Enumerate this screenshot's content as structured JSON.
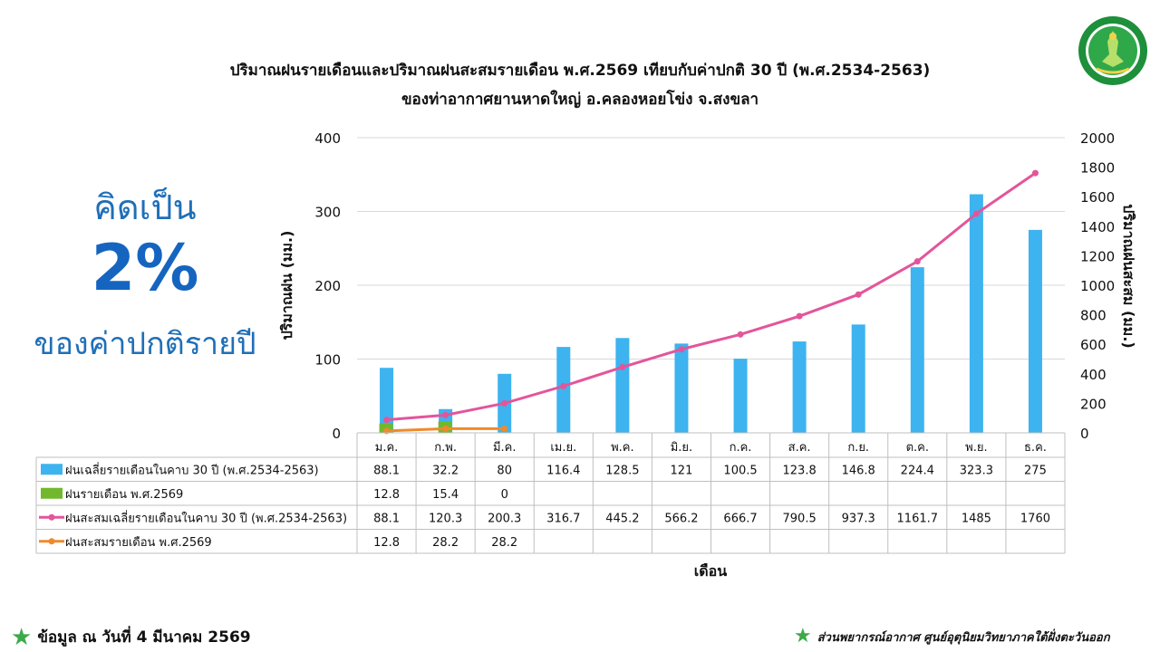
{
  "header": {
    "title_line1": "ปริมาณฝนรายเดือนและปริมาณฝนสะสมรายเดือน  พ.ศ.2569  เทียบกับค่าปกติ  30  ปี  (พ.ศ.2534-2563)",
    "title_line2": "ของท่าอากาศยานหาดใหญ่  อ.คลองหอยโข่ง  จ.สงขลา"
  },
  "side_note": {
    "top": "คิดเป็น",
    "percent": "2%",
    "bottom": "ของค่าปกติรายปี"
  },
  "footer": {
    "left": "ข้อมูล ณ วันที่ 4 มีนาคม 2569",
    "right": "ส่วนพยากรณ์อากาศ ศูนย์อุตุนิยมวิทยาภาคใต้ฝั่งตะวันออก",
    "star_icon": "star-icon"
  },
  "colors": {
    "normal_bar": "#3DB3EF",
    "bar_2569": "#72B82C",
    "normal_cum": "#E3559B",
    "cum_2569": "#EE8A2C",
    "side_text": "#1F6FB8",
    "star": "#3DAA4A"
  },
  "chart_data": {
    "type": "bar",
    "title": "ปริมาณฝนรายเดือนและปริมาณฝนสะสมรายเดือน  พ.ศ.2569  เทียบกับค่าปกติ  30  ปี  (พ.ศ.2534-2563) ของท่าอากาศยานหาดใหญ่  อ.คลองหอยโข่ง  จ.สงขลา",
    "xlabel": "เดือน",
    "ylabel": "ปริมาณฝน (มม.)",
    "y2label": "ปริมาณฝนสะสม (มม.)",
    "ylim": [
      0,
      400
    ],
    "y2lim": [
      0,
      2000
    ],
    "yticks": [
      0,
      100,
      200,
      300,
      400
    ],
    "y2ticks": [
      0,
      200,
      400,
      600,
      800,
      1000,
      1200,
      1400,
      1600,
      1800,
      2000
    ],
    "grid": true,
    "legend": "data-table",
    "categories": [
      "ม.ค.",
      "ก.พ.",
      "มี.ค.",
      "เม.ย.",
      "พ.ค.",
      "มิ.ย.",
      "ก.ค.",
      "ส.ค.",
      "ก.ย.",
      "ต.ค.",
      "พ.ย.",
      "ธ.ค."
    ],
    "series": [
      {
        "name": "ฝนเฉลี่ยรายเดือนในคาบ 30 ปี (พ.ศ.2534-2563)",
        "type": "bar",
        "axis": "left",
        "color": "#3DB3EF",
        "values": [
          88.1,
          32.2,
          80,
          116.4,
          128.5,
          121,
          100.5,
          123.8,
          146.8,
          224.4,
          323.3,
          275
        ],
        "labels": [
          "88.1",
          "32.2",
          "80",
          "116.4",
          "128.5",
          "121",
          "100.5",
          "123.8",
          "146.8",
          "224.4",
          "323.3",
          "275"
        ]
      },
      {
        "name": "ฝนรายเดือน พ.ศ.2569",
        "type": "bar",
        "axis": "left",
        "color": "#72B82C",
        "values": [
          12.8,
          15.4,
          0,
          null,
          null,
          null,
          null,
          null,
          null,
          null,
          null,
          null
        ],
        "labels": [
          "12.8",
          "15.4",
          "0",
          "",
          "",
          "",
          "",
          "",
          "",
          "",
          "",
          ""
        ]
      },
      {
        "name": "ฝนสะสมเฉลี่ยรายเดือนในคาบ 30 ปี (พ.ศ.2534-2563)",
        "type": "line",
        "axis": "right",
        "color": "#E3559B",
        "values": [
          88.1,
          120.3,
          200.3,
          316.7,
          445.2,
          566.2,
          666.7,
          790.5,
          937.3,
          1161.7,
          1485,
          1760
        ],
        "labels": [
          "88.1",
          "120.3",
          "200.3",
          "316.7",
          "445.2",
          "566.2",
          "666.7",
          "790.5",
          "937.3",
          "1161.7",
          "1485",
          "1760"
        ]
      },
      {
        "name": "ฝนสะสมรายเดือน พ.ศ.2569",
        "type": "line",
        "axis": "right",
        "color": "#EE8A2C",
        "values": [
          12.8,
          28.2,
          28.2,
          null,
          null,
          null,
          null,
          null,
          null,
          null,
          null,
          null
        ],
        "labels": [
          "12.8",
          "28.2",
          "28.2",
          "",
          "",
          "",
          "",
          "",
          "",
          "",
          "",
          ""
        ]
      }
    ]
  }
}
